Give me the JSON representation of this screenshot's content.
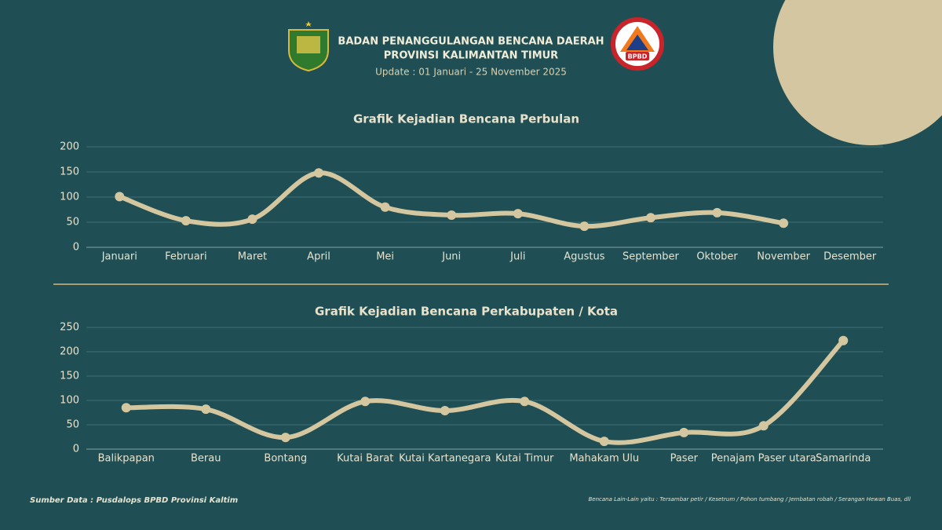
{
  "header": {
    "line1": "BADAN PENANGGULANGAN BENCANA DAERAH",
    "line2": "PROVINSI KALIMANTAN TIMUR",
    "update": "Update : 01 Januari - 25 November 2025",
    "logo_text": "BPBD"
  },
  "chart_data": [
    {
      "type": "line",
      "title": "Grafik Kejadian Bencana Perbulan",
      "categories": [
        "Januari",
        "Februari",
        "Maret",
        "April",
        "Mei",
        "Juni",
        "Juli",
        "Agustus",
        "September",
        "Oktober",
        "November",
        "Desember"
      ],
      "values": [
        101,
        53,
        56,
        148,
        80,
        64,
        67,
        42,
        59,
        69,
        48,
        null
      ],
      "color": "#d4c7a0",
      "ylim": [
        0,
        200
      ],
      "yticks": [
        0,
        50,
        100,
        150,
        200
      ],
      "grid": true,
      "smooth": true
    },
    {
      "type": "line",
      "title": "Grafik Kejadian Bencana Perkabupaten / Kota",
      "categories": [
        "Balikpapan",
        "Berau",
        "Bontang",
        "Kutai Barat",
        "Kutai Kartanegara",
        "Kutai Timur",
        "Mahakam Ulu",
        "Paser",
        "Penajam Paser utara",
        "Samarinda"
      ],
      "values": [
        85,
        82,
        24,
        98,
        79,
        98,
        16,
        34,
        48,
        223
      ],
      "color": "#d4c7a0",
      "ylim": [
        0,
        250
      ],
      "yticks": [
        0,
        50,
        100,
        150,
        200,
        250
      ],
      "grid": true,
      "smooth": true
    }
  ],
  "footer": {
    "source": "Sumber Data : Pusdalops BPBD Provinsi  Kaltim",
    "note": "Bencana Lain-Lain yaitu : Tersambar petir / Kesetrum / Pohon tumbang / Jembatan robah / Serangan Hewan Buas, dll"
  }
}
